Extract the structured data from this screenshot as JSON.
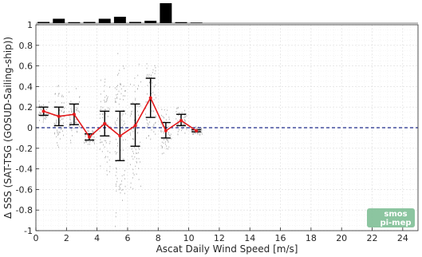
{
  "chart_data": {
    "type": "line",
    "xlabel": "Ascat Daily Wind Speed [m/s]",
    "ylabel": "Δ SSS (SAT-TSG (GOSUD-Sailing-ship))",
    "xlim": [
      0,
      25
    ],
    "ylim": [
      -1,
      1
    ],
    "xticks": [
      "0",
      "2",
      "4",
      "6",
      "8",
      "10",
      "12",
      "14",
      "16",
      "18",
      "20",
      "22",
      "24"
    ],
    "yticks": [
      "-1",
      "-0.8",
      "-0.6",
      "-0.4",
      "-0.2",
      "0",
      "0.2",
      "0.4",
      "0.6",
      "0.8",
      "1"
    ],
    "grid": true,
    "zero_line": {
      "y": 0,
      "style": "dashed",
      "color": "#1f2a8a"
    },
    "series": [
      {
        "color": "#e41a1c",
        "points": [
          {
            "x": 0.5,
            "y": 0.16,
            "lo": 0.12,
            "hi": 0.2
          },
          {
            "x": 1.5,
            "y": 0.11,
            "lo": 0.02,
            "hi": 0.2
          },
          {
            "x": 2.5,
            "y": 0.13,
            "lo": 0.03,
            "hi": 0.23
          },
          {
            "x": 3.5,
            "y": -0.09,
            "lo": -0.12,
            "hi": -0.06
          },
          {
            "x": 4.5,
            "y": 0.04,
            "lo": -0.08,
            "hi": 0.16
          },
          {
            "x": 5.5,
            "y": -0.08,
            "lo": -0.32,
            "hi": 0.16
          },
          {
            "x": 6.5,
            "y": 0.02,
            "lo": -0.18,
            "hi": 0.23
          },
          {
            "x": 7.5,
            "y": 0.29,
            "lo": 0.1,
            "hi": 0.48
          },
          {
            "x": 8.5,
            "y": -0.03,
            "lo": -0.1,
            "hi": 0.05
          },
          {
            "x": 9.5,
            "y": 0.07,
            "lo": 0.02,
            "hi": 0.13
          },
          {
            "x": 10.5,
            "y": -0.03,
            "lo": -0.04,
            "hi": -0.02
          }
        ]
      }
    ],
    "histogram": {
      "x": [
        0.5,
        1.5,
        2.5,
        3.5,
        4.5,
        5.5,
        6.5,
        7.5,
        8.5,
        9.5,
        10.5
      ],
      "values": [
        0.06,
        0.22,
        0.05,
        0.06,
        0.22,
        0.32,
        0.06,
        0.12,
        1.0,
        0.05,
        0.03
      ],
      "color": "#000000"
    },
    "scatter_color": "#aaaaaa"
  },
  "logo": {
    "line1": "smos",
    "line2": "pi-mep",
    "color": "#7fbf96"
  }
}
